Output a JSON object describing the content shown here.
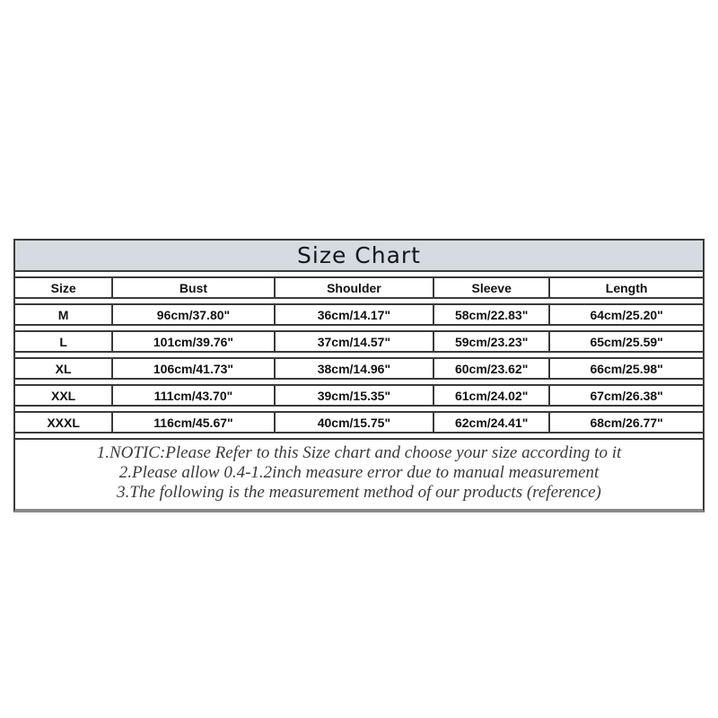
{
  "chart_data": {
    "type": "table",
    "title": "Size Chart",
    "columns": [
      "Size",
      "Bust",
      "Shoulder",
      "Sleeve",
      "Length"
    ],
    "rows": [
      [
        "M",
        "96cm/37.80\"",
        "36cm/14.17\"",
        "58cm/22.83\"",
        "64cm/25.20\""
      ],
      [
        "L",
        "101cm/39.76\"",
        "37cm/14.57\"",
        "59cm/23.23\"",
        "65cm/25.59\""
      ],
      [
        "XL",
        "106cm/41.73\"",
        "38cm/14.96\"",
        "60cm/23.62\"",
        "66cm/25.98\""
      ],
      [
        "XXL",
        "111cm/43.70\"",
        "39cm/15.35\"",
        "61cm/24.02\"",
        "67cm/26.38\""
      ],
      [
        "XXXL",
        "116cm/45.67\"",
        "40cm/15.75\"",
        "62cm/24.41\"",
        "68cm/26.77\""
      ]
    ],
    "notes": [
      "1.NOTIC:Please Refer to this Size chart and choose your size according to it",
      "2.Please allow 0.4-1.2inch measure error due to manual measurement",
      "3.The following is the measurement method of our products (reference)"
    ],
    "layout_hints": {
      "legend": "none",
      "grid": "full-borders",
      "title_position": "top-band"
    },
    "colors": {
      "title_band_bg": "#d6dbe2",
      "border": "#3a3a3a",
      "bottom_shadow": "#8a8a8a",
      "cell_text": "#111111",
      "notes_text": "#3a3a3a",
      "page_bg": "#ffffff"
    }
  }
}
